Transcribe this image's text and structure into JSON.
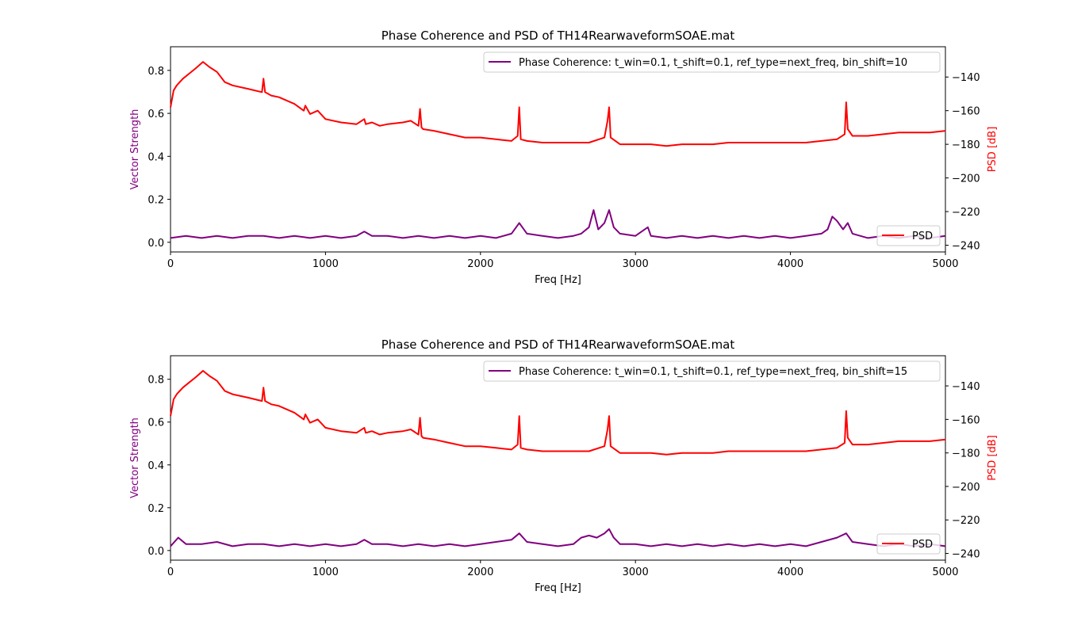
{
  "colors": {
    "coherence": "#800080",
    "psd": "#ff0000",
    "axes": "#000000"
  },
  "chart_data": [
    {
      "type": "line",
      "title": "Phase Coherence and PSD of TH14RearwaveformSOAE.mat",
      "xlabel": "Freq [Hz]",
      "ylabel_left": "Vector Strength",
      "ylabel_right": "PSD [dB]",
      "xlim": [
        0,
        5000
      ],
      "ylim_left": [
        -0.045,
        0.91
      ],
      "ylim_right": [
        -244,
        -122
      ],
      "xticks": [
        "0",
        "1000",
        "2000",
        "3000",
        "4000",
        "5000"
      ],
      "yticks_left": [
        "0.0",
        "0.2",
        "0.4",
        "0.6",
        "0.8"
      ],
      "yticks_right": [
        "−140",
        "−160",
        "−180",
        "−200",
        "−220",
        "−240"
      ],
      "grid": false,
      "legend_coherence": {
        "loc": "upper right",
        "label": "Phase Coherence: t_win=0.1, t_shift=0.1, ref_type=next_freq, bin_shift=10"
      },
      "legend_psd": {
        "loc": "lower right",
        "label": "PSD"
      },
      "series": [
        {
          "name": "Phase Coherence: t_win=0.1, t_shift=0.1, ref_type=next_freq, bin_shift=10",
          "axis": "left",
          "x": [
            0,
            100,
            200,
            300,
            400,
            500,
            600,
            700,
            800,
            900,
            1000,
            1100,
            1200,
            1250,
            1300,
            1400,
            1500,
            1600,
            1700,
            1800,
            1900,
            2000,
            2100,
            2200,
            2250,
            2300,
            2400,
            2500,
            2600,
            2650,
            2700,
            2730,
            2760,
            2800,
            2830,
            2860,
            2900,
            3000,
            3080,
            3100,
            3200,
            3300,
            3400,
            3500,
            3600,
            3700,
            3800,
            3900,
            4000,
            4100,
            4200,
            4240,
            4270,
            4300,
            4340,
            4370,
            4400,
            4500,
            4600,
            4700,
            4800,
            4900,
            5000
          ],
          "y": [
            0.02,
            0.03,
            0.02,
            0.03,
            0.02,
            0.03,
            0.03,
            0.02,
            0.03,
            0.02,
            0.03,
            0.02,
            0.03,
            0.05,
            0.03,
            0.03,
            0.02,
            0.03,
            0.02,
            0.03,
            0.02,
            0.03,
            0.02,
            0.04,
            0.09,
            0.04,
            0.03,
            0.02,
            0.03,
            0.04,
            0.07,
            0.15,
            0.06,
            0.09,
            0.15,
            0.07,
            0.04,
            0.03,
            0.07,
            0.03,
            0.02,
            0.03,
            0.02,
            0.03,
            0.02,
            0.03,
            0.02,
            0.03,
            0.02,
            0.03,
            0.04,
            0.06,
            0.12,
            0.1,
            0.06,
            0.09,
            0.04,
            0.02,
            0.03,
            0.02,
            0.03,
            0.02,
            0.03
          ]
        },
        {
          "name": "PSD",
          "axis": "right",
          "x": [
            0,
            20,
            40,
            80,
            120,
            160,
            210,
            250,
            300,
            350,
            400,
            500,
            590,
            600,
            610,
            650,
            700,
            800,
            860,
            870,
            900,
            950,
            1000,
            1100,
            1200,
            1250,
            1260,
            1300,
            1350,
            1400,
            1500,
            1550,
            1600,
            1610,
            1620,
            1630,
            1700,
            1800,
            1900,
            2000,
            2100,
            2200,
            2240,
            2250,
            2260,
            2300,
            2400,
            2500,
            2600,
            2700,
            2800,
            2820,
            2830,
            2840,
            2900,
            3000,
            3100,
            3200,
            3300,
            3400,
            3500,
            3600,
            3700,
            3800,
            3900,
            4000,
            4100,
            4200,
            4300,
            4350,
            4360,
            4370,
            4400,
            4500,
            4600,
            4700,
            4800,
            4900,
            5000
          ],
          "y": [
            -158,
            -148,
            -145,
            -141,
            -138,
            -135,
            -131,
            -134,
            -137,
            -143,
            -145,
            -147,
            -149,
            -141,
            -149,
            -151,
            -152,
            -156,
            -160,
            -157,
            -162,
            -160,
            -165,
            -167,
            -168,
            -165,
            -168,
            -167,
            -169,
            -168,
            -167,
            -166,
            -169,
            -159,
            -170,
            -171,
            -172,
            -174,
            -176,
            -176,
            -177,
            -178,
            -175,
            -158,
            -177,
            -178,
            -179,
            -179,
            -179,
            -179,
            -176,
            -166,
            -158,
            -176,
            -180,
            -180,
            -180,
            -181,
            -180,
            -180,
            -180,
            -179,
            -179,
            -179,
            -179,
            -179,
            -179,
            -178,
            -177,
            -174,
            -155,
            -171,
            -175,
            -175,
            -174,
            -173,
            -173,
            -173,
            -172
          ]
        }
      ]
    },
    {
      "type": "line",
      "title": "Phase Coherence and PSD of TH14RearwaveformSOAE.mat",
      "xlabel": "Freq [Hz]",
      "ylabel_left": "Vector Strength",
      "ylabel_right": "PSD [dB]",
      "xlim": [
        0,
        5000
      ],
      "ylim_left": [
        -0.045,
        0.91
      ],
      "ylim_right": [
        -244,
        -122
      ],
      "xticks": [
        "0",
        "1000",
        "2000",
        "3000",
        "4000",
        "5000"
      ],
      "yticks_left": [
        "0.0",
        "0.2",
        "0.4",
        "0.6",
        "0.8"
      ],
      "yticks_right": [
        "−140",
        "−160",
        "−180",
        "−200",
        "−220",
        "−240"
      ],
      "grid": false,
      "legend_coherence": {
        "loc": "upper right",
        "label": "Phase Coherence: t_win=0.1, t_shift=0.1, ref_type=next_freq, bin_shift=15"
      },
      "legend_psd": {
        "loc": "lower right",
        "label": "PSD"
      },
      "series": [
        {
          "name": "Phase Coherence: t_win=0.1, t_shift=0.1, ref_type=next_freq, bin_shift=15",
          "axis": "left",
          "x": [
            0,
            50,
            100,
            200,
            300,
            400,
            500,
            600,
            700,
            800,
            900,
            1000,
            1100,
            1200,
            1250,
            1300,
            1400,
            1500,
            1600,
            1700,
            1800,
            1900,
            2000,
            2100,
            2200,
            2250,
            2300,
            2400,
            2500,
            2600,
            2650,
            2700,
            2750,
            2800,
            2830,
            2860,
            2900,
            3000,
            3100,
            3200,
            3300,
            3400,
            3500,
            3600,
            3700,
            3800,
            3900,
            4000,
            4100,
            4200,
            4300,
            4360,
            4400,
            4500,
            4600,
            4700,
            4800,
            4900,
            5000
          ],
          "y": [
            0.02,
            0.06,
            0.03,
            0.03,
            0.04,
            0.02,
            0.03,
            0.03,
            0.02,
            0.03,
            0.02,
            0.03,
            0.02,
            0.03,
            0.05,
            0.03,
            0.03,
            0.02,
            0.03,
            0.02,
            0.03,
            0.02,
            0.03,
            0.04,
            0.05,
            0.08,
            0.04,
            0.03,
            0.02,
            0.03,
            0.06,
            0.07,
            0.06,
            0.08,
            0.1,
            0.06,
            0.03,
            0.03,
            0.02,
            0.03,
            0.02,
            0.03,
            0.02,
            0.03,
            0.02,
            0.03,
            0.02,
            0.03,
            0.02,
            0.04,
            0.06,
            0.08,
            0.04,
            0.03,
            0.02,
            0.03,
            0.02,
            0.03,
            0.02
          ]
        },
        {
          "name": "PSD",
          "axis": "right",
          "x": [
            0,
            20,
            40,
            80,
            120,
            160,
            210,
            250,
            300,
            350,
            400,
            500,
            590,
            600,
            610,
            650,
            700,
            800,
            860,
            870,
            900,
            950,
            1000,
            1100,
            1200,
            1250,
            1260,
            1300,
            1350,
            1400,
            1500,
            1550,
            1600,
            1610,
            1620,
            1630,
            1700,
            1800,
            1900,
            2000,
            2100,
            2200,
            2240,
            2250,
            2260,
            2300,
            2400,
            2500,
            2600,
            2700,
            2800,
            2820,
            2830,
            2840,
            2900,
            3000,
            3100,
            3200,
            3300,
            3400,
            3500,
            3600,
            3700,
            3800,
            3900,
            4000,
            4100,
            4200,
            4300,
            4350,
            4360,
            4370,
            4400,
            4500,
            4600,
            4700,
            4800,
            4900,
            5000
          ],
          "y": [
            -158,
            -148,
            -145,
            -141,
            -138,
            -135,
            -131,
            -134,
            -137,
            -143,
            -145,
            -147,
            -149,
            -141,
            -149,
            -151,
            -152,
            -156,
            -160,
            -157,
            -162,
            -160,
            -165,
            -167,
            -168,
            -165,
            -168,
            -167,
            -169,
            -168,
            -167,
            -166,
            -169,
            -159,
            -170,
            -171,
            -172,
            -174,
            -176,
            -176,
            -177,
            -178,
            -175,
            -158,
            -177,
            -178,
            -179,
            -179,
            -179,
            -179,
            -176,
            -166,
            -158,
            -176,
            -180,
            -180,
            -180,
            -181,
            -180,
            -180,
            -180,
            -179,
            -179,
            -179,
            -179,
            -179,
            -179,
            -178,
            -177,
            -174,
            -155,
            -171,
            -175,
            -175,
            -174,
            -173,
            -173,
            -173,
            -172
          ]
        }
      ]
    }
  ]
}
